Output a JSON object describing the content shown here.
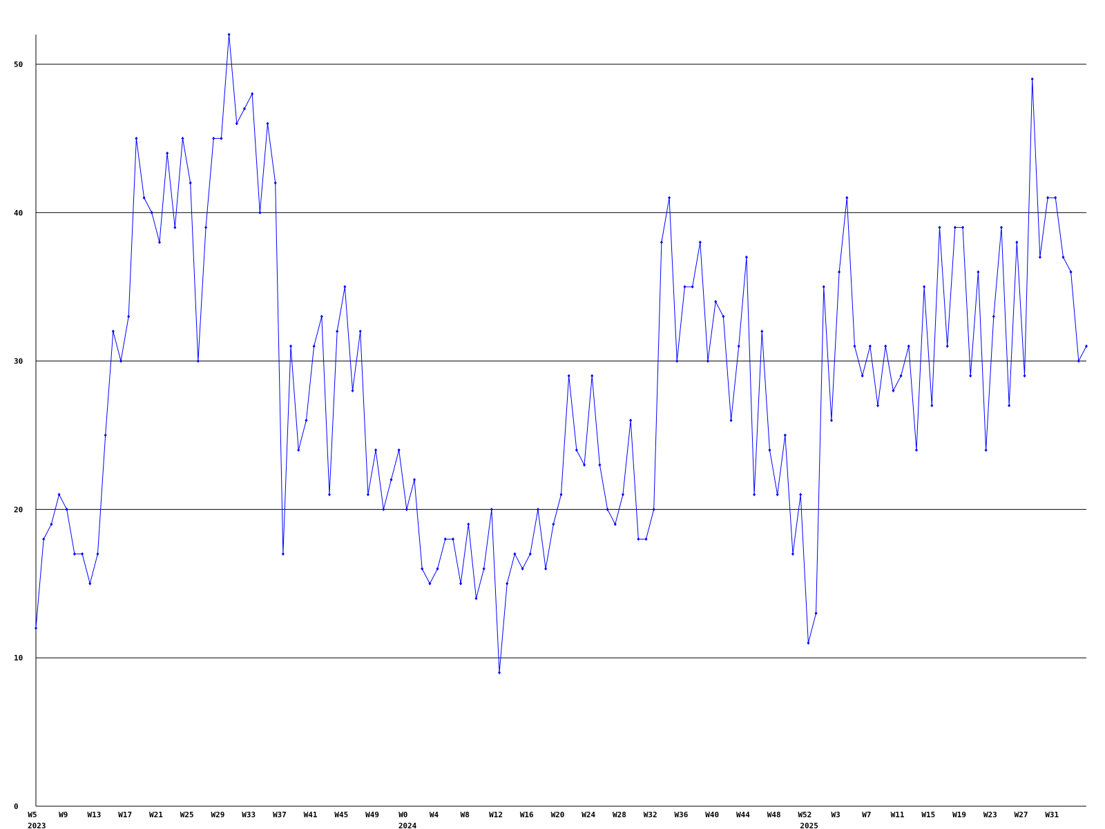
{
  "chart_data": {
    "type": "line",
    "categories": [
      "W5",
      null,
      null,
      null,
      "W9",
      null,
      null,
      null,
      "W13",
      null,
      null,
      null,
      "W17",
      null,
      null,
      null,
      "W21",
      null,
      null,
      null,
      "W25",
      null,
      null,
      null,
      "W29",
      null,
      null,
      null,
      "W33",
      null,
      null,
      null,
      "W37",
      null,
      null,
      null,
      "W41",
      null,
      null,
      null,
      "W45",
      null,
      null,
      null,
      "W49",
      null,
      null,
      null,
      "W0",
      null,
      null,
      null,
      "W4",
      null,
      null,
      null,
      "W8",
      null,
      null,
      null,
      "W12",
      null,
      null,
      null,
      "W16",
      null,
      null,
      null,
      "W20",
      null,
      null,
      null,
      "W24",
      null,
      null,
      null,
      "W28",
      null,
      null,
      null,
      "W32",
      null,
      null,
      null,
      "W36",
      null,
      null,
      null,
      "W40",
      null,
      null,
      null,
      "W44",
      null,
      null,
      null,
      "W48",
      null,
      null,
      null,
      "W52",
      null,
      null,
      null,
      "W3",
      null,
      null,
      null,
      "W7",
      null,
      null,
      null,
      "W11",
      null,
      null,
      null,
      "W15",
      null,
      null,
      null,
      "W19",
      null,
      null,
      null,
      "W23",
      null,
      null,
      null,
      "W27",
      null,
      null,
      null,
      "W31",
      null,
      null,
      null,
      null
    ],
    "year_labels": [
      {
        "index": 0,
        "label": "2023"
      },
      {
        "index": 48,
        "label": "2024"
      },
      {
        "index": 100,
        "label": "2025"
      }
    ],
    "series": [
      {
        "color": "#0000ff",
        "values": [
          12,
          18,
          19,
          21,
          20,
          17,
          17,
          15,
          17,
          25,
          32,
          30,
          33,
          45,
          41,
          40,
          38,
          44,
          39,
          45,
          42,
          30,
          39,
          45,
          45,
          52,
          46,
          47,
          48,
          40,
          46,
          42,
          17,
          31,
          24,
          26,
          31,
          33,
          21,
          32,
          35,
          28,
          32,
          21,
          24,
          20,
          22,
          24,
          20,
          22,
          16,
          15,
          16,
          18,
          18,
          15,
          19,
          14,
          16,
          20,
          9,
          15,
          17,
          16,
          17,
          20,
          16,
          19,
          21,
          29,
          24,
          23,
          29,
          23,
          20,
          19,
          21,
          26,
          18,
          18,
          20,
          38,
          41,
          30,
          35,
          35,
          38,
          30,
          34,
          33,
          26,
          31,
          37,
          21,
          32,
          24,
          21,
          25,
          17,
          21,
          11,
          13,
          35,
          26,
          36,
          41,
          31,
          29,
          31,
          27,
          31,
          28,
          29,
          31,
          24,
          35,
          27,
          39,
          31,
          39,
          39,
          29,
          36,
          24,
          33,
          39,
          27,
          38,
          29,
          49,
          37,
          41,
          41,
          37,
          36,
          30,
          31
        ]
      }
    ],
    "ylim": [
      0,
      52
    ],
    "yticks": [
      0,
      10,
      20,
      30,
      40,
      50
    ],
    "grid": true
  }
}
